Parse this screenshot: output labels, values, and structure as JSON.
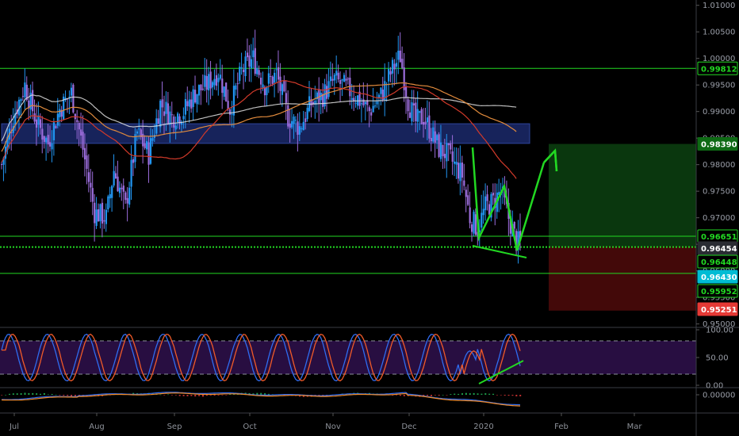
{
  "chart_data": [
    {
      "type": "candlestick",
      "ylim": [
        0.9495,
        1.011
      ],
      "y_ticks": [
        "1.01000",
        "1.00500",
        "1.00000",
        "0.99500",
        "0.99000",
        "0.98500",
        "0.98000",
        "0.97500",
        "0.97000",
        "0.96500",
        "0.96000",
        "0.95500",
        "0.95000"
      ],
      "x_labels": [
        "Jul",
        "Aug",
        "Sep",
        "Oct",
        "Nov",
        "Dec",
        "2020",
        "Feb",
        "Mar"
      ],
      "ohlc_summary": {
        "jul": [
          0.981,
          0.9995
        ],
        "aug": [
          0.966,
          0.996
        ],
        "sep": [
          0.98,
          0.9965
        ],
        "oct": [
          0.986,
          1.002
        ],
        "nov": [
          0.985,
          0.999
        ],
        "dec": [
          0.979,
          1.002
        ],
        "jan": [
          0.964,
          0.984
        ]
      },
      "horizontal_levels": [
        {
          "value": 0.99812,
          "label": "0.99812",
          "color": "#22d822"
        },
        {
          "value": 0.9839,
          "label": "0.98390",
          "color": "#22d822"
        },
        {
          "value": 0.96651,
          "label": "0.96651",
          "color": "#22d822"
        },
        {
          "value": 0.96454,
          "label": "0.96454",
          "color": "#22d822"
        },
        {
          "value": 0.96448,
          "label": "0.96448",
          "color": "#22d822"
        },
        {
          "value": 0.9643,
          "label": "0.96430",
          "color": "#00bcd4"
        },
        {
          "value": 0.95952,
          "label": "0.95952",
          "color": "#22d822"
        },
        {
          "value": 0.95251,
          "label": "0.95251",
          "color": "#e53935"
        }
      ],
      "support_zone": [
        0.984,
        0.9877
      ],
      "moving_averages": [
        {
          "color": "#e0e0e0"
        },
        {
          "color": "#e08a3c"
        },
        {
          "color": "#d23a2a"
        }
      ],
      "position": {
        "entry": 0.96454,
        "target": 0.9839,
        "stop": 0.95251
      },
      "colors": {
        "up": "#2196f3",
        "down": "#9c6ddc",
        "level": "#22d822",
        "zone": "#1c2a6b"
      }
    },
    {
      "type": "line",
      "name": "stochastic",
      "ylim": [
        0,
        100
      ],
      "y_ticks": [
        "100.00",
        "50.00",
        "0.00"
      ],
      "bands": [
        20,
        80
      ],
      "series": [
        {
          "color": "#2f6cf0"
        },
        {
          "color": "#f05a28"
        }
      ]
    },
    {
      "type": "histogram",
      "name": "macd",
      "y_ticks": [
        "0.00000"
      ],
      "colors": {
        "pos": "#1e9e4a",
        "neg": "#c03030",
        "macd": "#2f6cf0",
        "signal": "#f08a28"
      }
    }
  ]
}
